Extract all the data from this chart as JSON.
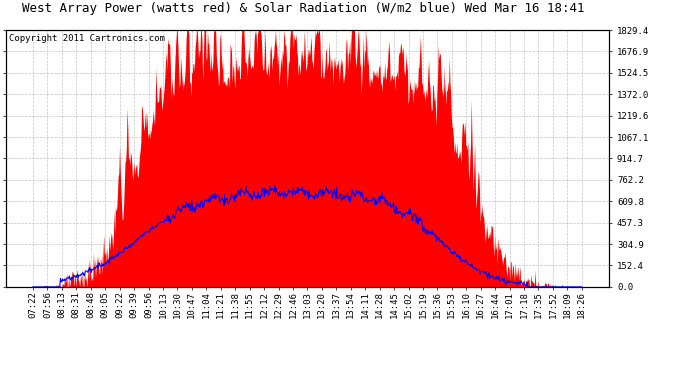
{
  "title": "West Array Power (watts red) & Solar Radiation (W/m2 blue) Wed Mar 16 18:41",
  "copyright": "Copyright 2011 Cartronics.com",
  "background_color": "#ffffff",
  "plot_bg_color": "#ffffff",
  "grid_color": "#cccccc",
  "y_max": 1829.4,
  "y_min": 0.0,
  "y_ticks": [
    0.0,
    152.4,
    304.9,
    457.3,
    609.8,
    762.2,
    914.7,
    1067.1,
    1219.6,
    1372.0,
    1524.5,
    1676.9,
    1829.4
  ],
  "x_labels": [
    "07:22",
    "07:56",
    "08:13",
    "08:31",
    "08:48",
    "09:05",
    "09:22",
    "09:39",
    "09:56",
    "10:13",
    "10:30",
    "10:47",
    "11:04",
    "11:21",
    "11:38",
    "11:55",
    "12:12",
    "12:29",
    "12:46",
    "13:03",
    "13:20",
    "13:37",
    "13:54",
    "14:11",
    "14:28",
    "14:45",
    "15:02",
    "15:19",
    "15:36",
    "15:53",
    "16:10",
    "16:27",
    "16:44",
    "17:01",
    "17:18",
    "17:35",
    "17:52",
    "18:09",
    "18:26"
  ],
  "power_color": "#ff0000",
  "solar_color": "#0000ff",
  "title_fontsize": 9,
  "copyright_fontsize": 6.5,
  "tick_fontsize": 6.5
}
